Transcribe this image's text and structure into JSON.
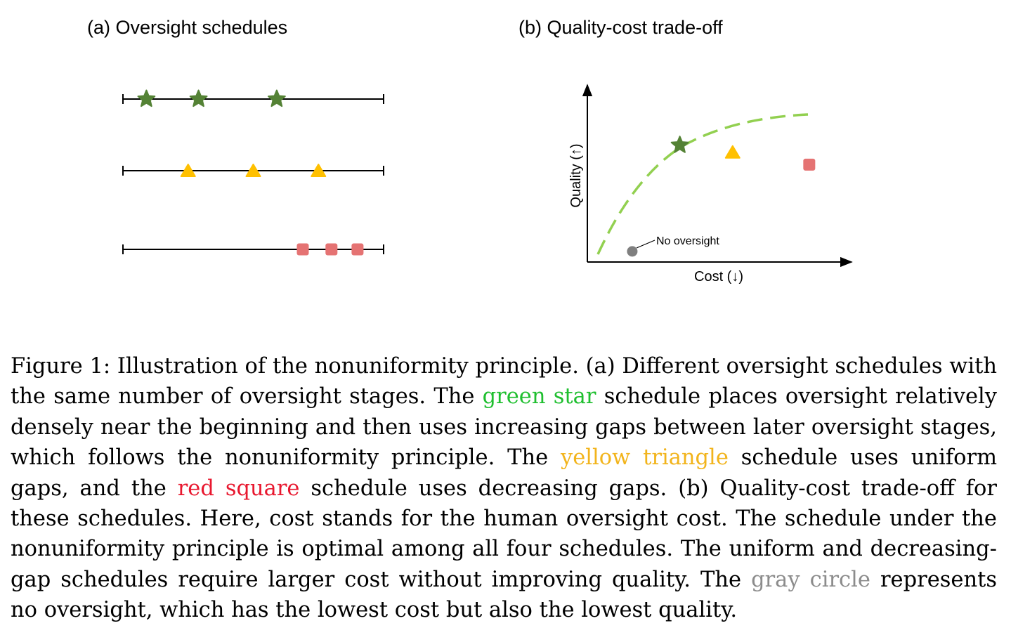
{
  "panel_a": {
    "title": "(a) Oversight schedules",
    "schedules": [
      {
        "marker": "star-icon",
        "color": "#548235",
        "positions": [
          0.09,
          0.29,
          0.59
        ]
      },
      {
        "marker": "triangle-icon",
        "color": "#ffc000",
        "positions": [
          0.25,
          0.5,
          0.75
        ]
      },
      {
        "marker": "square-icon",
        "color": "#e57373",
        "positions": [
          0.69,
          0.8,
          0.9
        ]
      }
    ]
  },
  "panel_b": {
    "title": "(b) Quality-cost trade-off",
    "ylabel": "Quality (↑)",
    "xlabel": "Cost (↓)",
    "annotation": "No oversight",
    "curve_color": "#92d050",
    "points": [
      {
        "marker": "circle-icon",
        "color": "#7f7f7f",
        "cost": 0.17,
        "quality": 0.06
      },
      {
        "marker": "star-icon",
        "color": "#548235",
        "cost": 0.35,
        "quality": 0.66
      },
      {
        "marker": "triangle-icon",
        "color": "#ffc000",
        "cost": 0.55,
        "quality": 0.62
      },
      {
        "marker": "square-icon",
        "color": "#e57373",
        "cost": 0.84,
        "quality": 0.55
      }
    ]
  },
  "caption": {
    "p1": "Figure 1: Illustration of the nonuniformity principle. (a) Different oversight schedules with the same number of oversight stages. The ",
    "green": "green star",
    "p2": " schedule places oversight relatively densely near the beginning and then uses increasing gaps between later oversight stages, which follows the nonuniformity principle. The ",
    "yellow": "yellow triangle",
    "p3": " schedule uses uniform gaps, and the ",
    "red": "red square",
    "p4": " schedule uses decreasing gaps. (b) Quality-cost trade-off for these schedules. Here, cost stands for the human oversight cost. The schedule under the nonuniformity principle is optimal among all four schedules. The uniform and decreasing-gap schedules require larger cost without improving quality. The ",
    "gray": "gray circle",
    "p5": " represents no oversight, which has the lowest cost but also the lowest quality."
  }
}
